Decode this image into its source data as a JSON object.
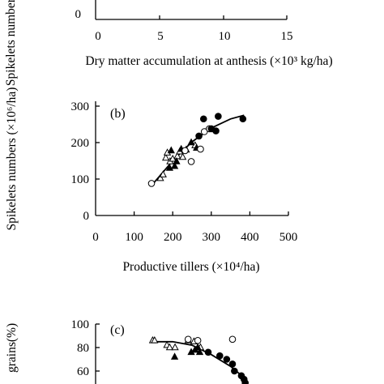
{
  "chart_data": [
    {
      "panel": "",
      "type": "scatter",
      "xlabel": "Dry matter accumulation at anthesis (×10³ kg/ha)",
      "ylabel": "Spikelets numbers",
      "xlim": [
        0,
        15
      ],
      "x_ticks": [
        "0",
        "5",
        "10",
        "15"
      ],
      "y_ticks": [
        "0"
      ],
      "series": []
    },
    {
      "panel": "(b)",
      "type": "scatter",
      "xlabel": "Productive tillers (×10⁴/ha)",
      "ylabel": "Spikelets numbers (×10⁶/ha)",
      "xlim": [
        0,
        500
      ],
      "ylim": [
        0,
        300
      ],
      "x_ticks": [
        "0",
        "100",
        "200",
        "300",
        "400",
        "500"
      ],
      "y_ticks": [
        "0",
        "100",
        "200",
        "300"
      ],
      "series": [
        {
          "marker": "open-triangle",
          "points": [
            [
              168,
              102
            ],
            [
              175,
              112
            ],
            [
              182,
              158
            ],
            [
              186,
              172
            ],
            [
              193,
              148
            ],
            [
              200,
              155
            ],
            [
              212,
              162
            ],
            [
              218,
              175
            ],
            [
              226,
              160
            ],
            [
              258,
              192
            ]
          ]
        },
        {
          "marker": "filled-triangle",
          "points": [
            [
              192,
              130
            ],
            [
              205,
              135
            ],
            [
              222,
              182
            ],
            [
              235,
              180
            ],
            [
              248,
              200
            ],
            [
              262,
              185
            ],
            [
              210,
              148
            ],
            [
              196,
              178
            ]
          ]
        },
        {
          "marker": "open-circle",
          "points": [
            [
              145,
              88
            ],
            [
              232,
              178
            ],
            [
              248,
              148
            ],
            [
              272,
              182
            ],
            [
              282,
              230
            ],
            [
              295,
              238
            ]
          ]
        },
        {
          "marker": "filled-circle",
          "points": [
            [
              268,
              218
            ],
            [
              280,
              265
            ],
            [
              300,
              238
            ],
            [
              312,
              232
            ],
            [
              318,
              272
            ],
            [
              382,
              265
            ]
          ]
        }
      ],
      "fit_curve": [
        [
          145,
          82
        ],
        [
          200,
          150
        ],
        [
          250,
          202
        ],
        [
          300,
          240
        ],
        [
          350,
          265
        ],
        [
          385,
          275
        ]
      ]
    },
    {
      "panel": "(c)",
      "type": "scatter",
      "xlabel": "",
      "ylabel": "grains(%)",
      "xlim": [
        0,
        500
      ],
      "ylim": [
        0,
        100
      ],
      "y_ticks": [
        "60",
        "80",
        "100"
      ],
      "series": [
        {
          "marker": "open-triangle",
          "points": [
            [
              148,
              86
            ],
            [
              153,
              86
            ],
            [
              185,
              82
            ],
            [
              192,
              80
            ],
            [
              206,
              80
            ],
            [
              240,
              86
            ],
            [
              255,
              85
            ],
            [
              265,
              78
            ],
            [
              272,
              80
            ]
          ]
        },
        {
          "marker": "filled-triangle",
          "points": [
            [
              205,
              72
            ],
            [
              248,
              76
            ],
            [
              258,
              78
            ],
            [
              265,
              80
            ],
            [
              270,
              76
            ]
          ]
        },
        {
          "marker": "open-circle",
          "points": [
            [
              240,
              87
            ],
            [
              265,
              86
            ],
            [
              355,
              87
            ]
          ]
        },
        {
          "marker": "filled-circle",
          "points": [
            [
              292,
              76
            ],
            [
              322,
              73
            ],
            [
              340,
              70
            ],
            [
              355,
              66
            ],
            [
              360,
              60
            ],
            [
              378,
              56
            ],
            [
              385,
              53
            ],
            [
              388,
              50
            ]
          ]
        }
      ],
      "fit_curve": [
        [
          145,
          85
        ],
        [
          200,
          85
        ],
        [
          250,
          82
        ],
        [
          300,
          74
        ],
        [
          350,
          64
        ],
        [
          390,
          53
        ]
      ]
    }
  ]
}
